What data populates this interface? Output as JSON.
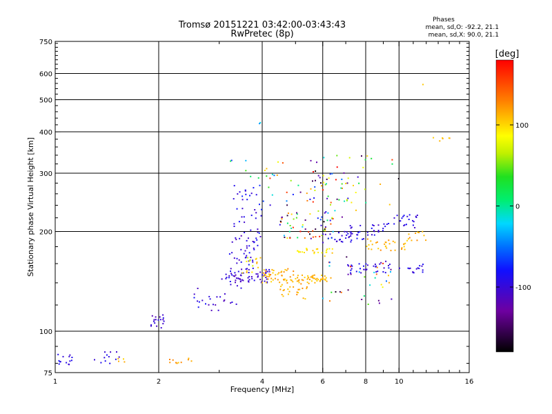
{
  "chart_data": {
    "type": "scatter",
    "title": "Tromsø 20151221 03:42:00-03:43:43",
    "subtitle": "RwPretec (8p)",
    "phases": {
      "heading": "Phases",
      "line_o": "mean, sd,O: -92.2, 21.1",
      "line_x": "mean, sd,X:  90.0, 21.1"
    },
    "xlabel": "Frequency [MHz]",
    "ylabel": "Stationary phase Virtual Height [km]",
    "x_scale": "log",
    "y_scale": "log",
    "xlim": [
      1,
      16
    ],
    "ylim": [
      75,
      750
    ],
    "x_ticks": [
      {
        "value": 1,
        "label": "1"
      },
      {
        "value": 2,
        "label": "2"
      },
      {
        "value": 4,
        "label": "4"
      },
      {
        "value": 6,
        "label": "6"
      },
      {
        "value": 8,
        "label": "8"
      },
      {
        "value": 10,
        "label": "10"
      },
      {
        "value": 16,
        "label": "16"
      }
    ],
    "y_ticks": [
      {
        "value": 75,
        "label": "75"
      },
      {
        "value": 100,
        "label": "100"
      },
      {
        "value": 200,
        "label": "200"
      },
      {
        "value": 300,
        "label": "300"
      },
      {
        "value": 400,
        "label": "400"
      },
      {
        "value": 500,
        "label": "500"
      },
      {
        "value": 600,
        "label": "600"
      },
      {
        "value": 750,
        "label": "750"
      }
    ],
    "x_gridlines": [
      2,
      4,
      6,
      8,
      10
    ],
    "y_gridlines": [
      100,
      200,
      300,
      400,
      500,
      600
    ],
    "colorbar": {
      "label": "[deg]",
      "range": [
        -180,
        180
      ],
      "ticks": [
        {
          "value": 100,
          "label": "100"
        },
        {
          "value": 0,
          "label": "0"
        },
        {
          "value": -100,
          "label": "-100"
        }
      ]
    },
    "clusters": [
      {
        "x": [
          1.0,
          1.12
        ],
        "y": [
          78,
          86
        ],
        "phase": [
          -110,
          -80
        ],
        "n": 14
      },
      {
        "x": [
          1.3,
          1.55
        ],
        "y": [
          79,
          90
        ],
        "phase": [
          -110,
          -80
        ],
        "n": 12
      },
      {
        "x": [
          1.4,
          1.6
        ],
        "y": [
          80,
          84
        ],
        "phase": [
          100,
          130
        ],
        "n": 4
      },
      {
        "x": [
          1.9,
          2.1
        ],
        "y": [
          101,
          112
        ],
        "phase": [
          -120,
          -90
        ],
        "n": 18
      },
      {
        "x": [
          2.1,
          2.6
        ],
        "y": [
          80,
          84
        ],
        "phase": [
          100,
          130
        ],
        "n": 10
      },
      {
        "x": [
          2.4,
          3.0
        ],
        "y": [
          115,
          135
        ],
        "phase": [
          -120,
          -80
        ],
        "n": 16
      },
      {
        "x": [
          3.0,
          3.5
        ],
        "y": [
          120,
          150
        ],
        "phase": [
          -120,
          -90
        ],
        "n": 20
      },
      {
        "x": [
          3.2,
          3.8
        ],
        "y": [
          140,
          200
        ],
        "phase": [
          -120,
          -80
        ],
        "n": 50
      },
      {
        "x": [
          3.3,
          4.0
        ],
        "y": [
          180,
          280
        ],
        "phase": [
          -110,
          -70
        ],
        "n": 40
      },
      {
        "x": [
          3.4,
          4.2
        ],
        "y": [
          140,
          155
        ],
        "phase": [
          -120,
          -90
        ],
        "n": 40
      },
      {
        "x": [
          3.5,
          4.0
        ],
        "y": [
          150,
          170
        ],
        "phase": [
          60,
          120
        ],
        "n": 15
      },
      {
        "x": [
          4.0,
          5.0
        ],
        "y": [
          140,
          155
        ],
        "phase": [
          100,
          130
        ],
        "n": 45
      },
      {
        "x": [
          4.5,
          5.5
        ],
        "y": [
          125,
          140
        ],
        "phase": [
          100,
          130
        ],
        "n": 25
      },
      {
        "x": [
          5.0,
          6.2
        ],
        "y": [
          140,
          148
        ],
        "phase": [
          100,
          125
        ],
        "n": 45
      },
      {
        "x": [
          5.0,
          6.5
        ],
        "y": [
          170,
          178
        ],
        "phase": [
          80,
          110
        ],
        "n": 25
      },
      {
        "x": [
          4.5,
          6.5
        ],
        "y": [
          190,
          230
        ],
        "phase": [
          -180,
          180
        ],
        "n": 60
      },
      {
        "x": [
          5.5,
          7.5
        ],
        "y": [
          220,
          300
        ],
        "phase": [
          -180,
          180
        ],
        "n": 40
      },
      {
        "x": [
          6.0,
          8.0
        ],
        "y": [
          185,
          200
        ],
        "phase": [
          -110,
          -80
        ],
        "n": 30
      },
      {
        "x": [
          7.0,
          9.0
        ],
        "y": [
          195,
          210
        ],
        "phase": [
          -110,
          -80
        ],
        "n": 25
      },
      {
        "x": [
          7.0,
          9.5
        ],
        "y": [
          150,
          160
        ],
        "phase": [
          -110,
          -80
        ],
        "n": 30
      },
      {
        "x": [
          8.0,
          10.5
        ],
        "y": [
          175,
          190
        ],
        "phase": [
          100,
          130
        ],
        "n": 30
      },
      {
        "x": [
          9.0,
          11.5
        ],
        "y": [
          205,
          225
        ],
        "phase": [
          -110,
          -80
        ],
        "n": 25
      },
      {
        "x": [
          10.0,
          12.0
        ],
        "y": [
          150,
          160
        ],
        "phase": [
          -110,
          -80
        ],
        "n": 15
      },
      {
        "x": [
          10.5,
          12.0
        ],
        "y": [
          185,
          200
        ],
        "phase": [
          100,
          130
        ],
        "n": 12
      },
      {
        "x": [
          6.0,
          10.0
        ],
        "y": [
          120,
          170
        ],
        "phase": [
          -180,
          180
        ],
        "n": 40
      },
      {
        "x": [
          4.0,
          10.0
        ],
        "y": [
          240,
          340
        ],
        "phase": [
          -180,
          180
        ],
        "n": 50
      },
      {
        "x": [
          3.0,
          4.5
        ],
        "y": [
          280,
          330
        ],
        "phase": [
          -100,
          120
        ],
        "n": 10
      },
      {
        "x": [
          12.5,
          14.5
        ],
        "y": [
          375,
          385
        ],
        "phase": [
          100,
          130
        ],
        "n": 6
      },
      {
        "x": [
          3.85,
          3.95
        ],
        "y": [
          420,
          480
        ],
        "phase": [
          -40,
          110
        ],
        "n": 2
      },
      {
        "x": [
          11.6,
          11.8
        ],
        "y": [
          555,
          560
        ],
        "phase": [
          100,
          120
        ],
        "n": 1
      }
    ]
  }
}
